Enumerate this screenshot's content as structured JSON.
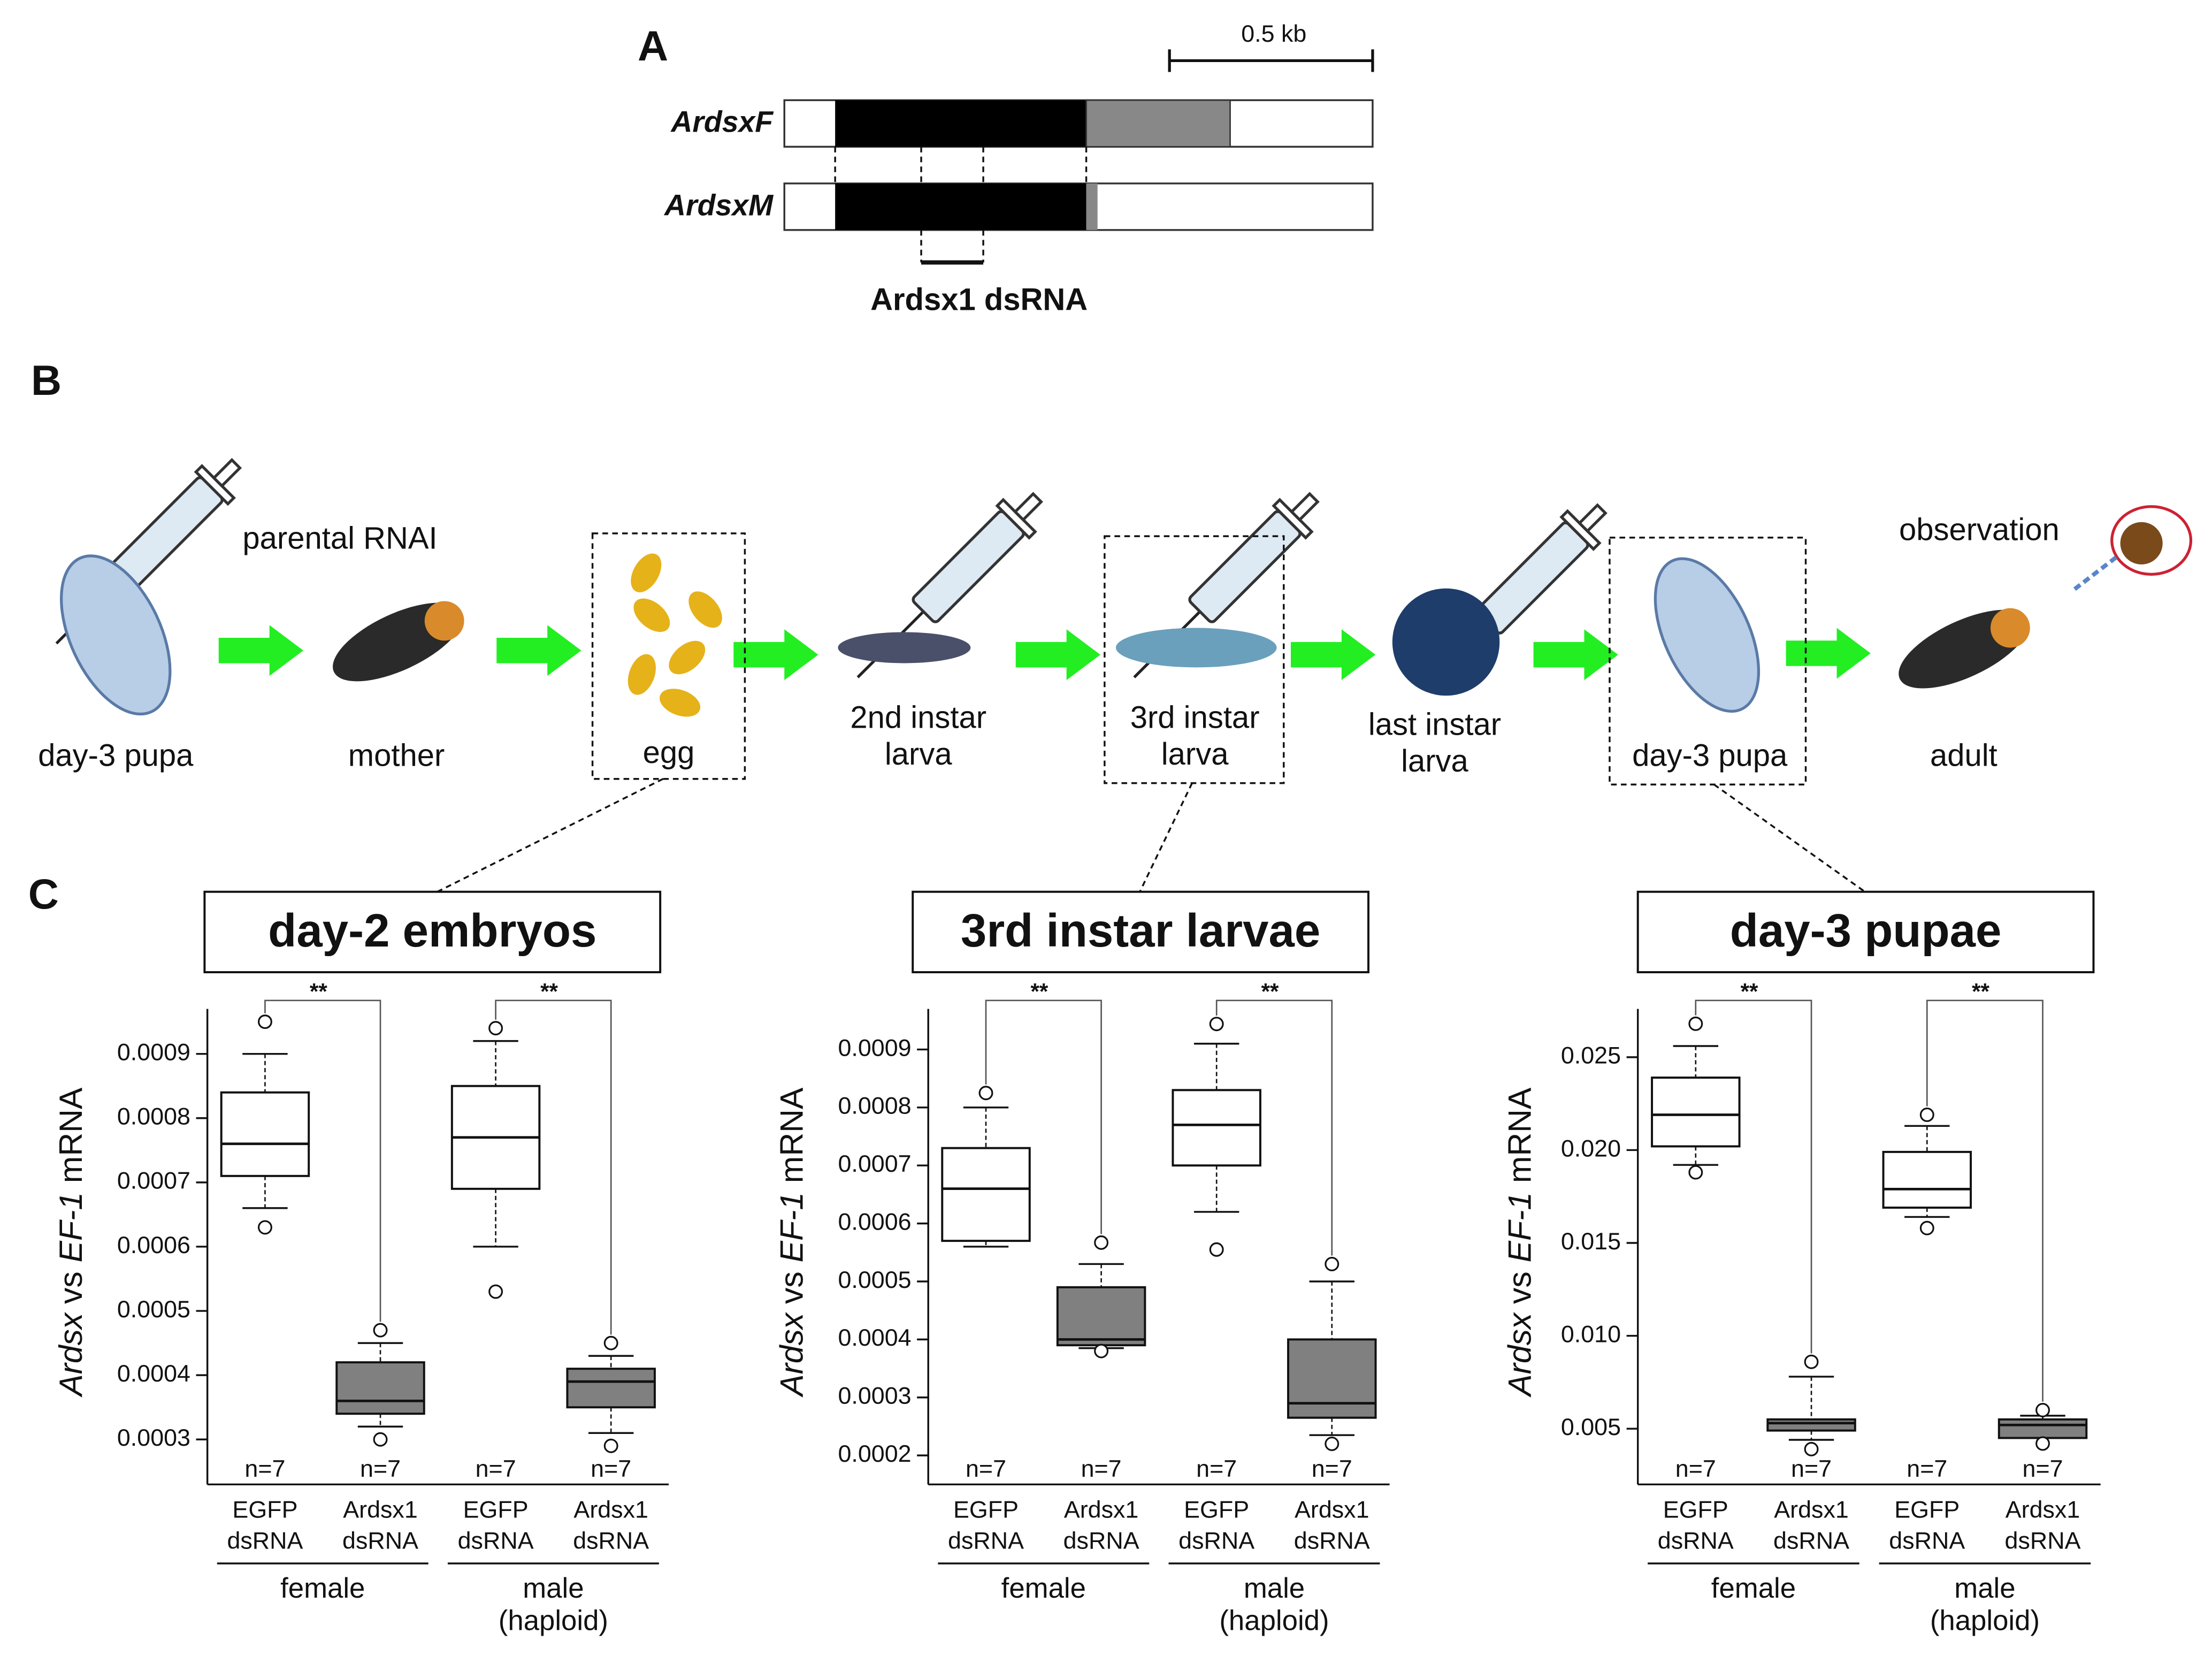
{
  "panel_a": {
    "label": "A",
    "scale": "0.5 kb",
    "transcripts": [
      "ArdsxF",
      "ArdsxM"
    ],
    "dsrna": "Ardsx1 dsRNA"
  },
  "panel_b": {
    "label": "B",
    "injection": "parental RNAI",
    "observation": "observation",
    "stages": [
      [
        "day-3 pupa"
      ],
      [
        "mother"
      ],
      [
        "egg"
      ],
      [
        "2nd instar",
        "larva"
      ],
      [
        "3rd instar",
        "larva"
      ],
      [
        "last instar",
        "larva"
      ],
      [
        "day-3 pupa"
      ],
      [
        "adult"
      ]
    ]
  },
  "panel_c": {
    "label": "C"
  },
  "chart_data": [
    {
      "type": "box",
      "title": "day-2 embryos",
      "ylabel": [
        "Ardsx",
        " vs ",
        "EF-1",
        " mRNA"
      ],
      "ylim": [
        0.00023,
        0.00097
      ],
      "yticks": [
        0.0003,
        0.0004,
        0.0005,
        0.0006,
        0.0007,
        0.0008,
        0.0009
      ],
      "categories": [
        [
          "EGFP",
          "dsRNA"
        ],
        [
          "Ardsx1",
          "dsRNA"
        ],
        [
          "EGFP",
          "dsRNA"
        ],
        [
          "Ardsx1",
          "dsRNA"
        ]
      ],
      "groups": [
        [
          "female"
        ],
        [
          "male",
          "(haploid)"
        ]
      ],
      "n_labels": [
        "n=7",
        "n=7",
        "n=7",
        "n=7"
      ],
      "annotations": [
        "**",
        "**"
      ],
      "colors": [
        "#ffffff",
        "#808080",
        "#ffffff",
        "#808080"
      ],
      "boxes": [
        {
          "low": 0.00066,
          "q1": 0.00071,
          "median": 0.00076,
          "q3": 0.00084,
          "high": 0.0009,
          "outliers": [
            0.00095,
            0.00063
          ]
        },
        {
          "low": 0.00032,
          "q1": 0.00034,
          "median": 0.00036,
          "q3": 0.00042,
          "high": 0.00045,
          "outliers": [
            0.00047,
            0.0003
          ]
        },
        {
          "low": 0.0006,
          "q1": 0.00069,
          "median": 0.00077,
          "q3": 0.00085,
          "high": 0.00092,
          "outliers": [
            0.00094,
            0.00053
          ]
        },
        {
          "low": 0.00031,
          "q1": 0.00035,
          "median": 0.00039,
          "q3": 0.00041,
          "high": 0.00043,
          "outliers": [
            0.00045,
            0.00029
          ]
        }
      ]
    },
    {
      "type": "box",
      "title": "3rd instar larvae",
      "ylabel": [
        "Ardsx",
        " vs ",
        "EF-1",
        " mRNA"
      ],
      "ylim": [
        0.00015,
        0.00097
      ],
      "yticks": [
        0.0002,
        0.0003,
        0.0004,
        0.0005,
        0.0006,
        0.0007,
        0.0008,
        0.0009
      ],
      "categories": [
        [
          "EGFP",
          "dsRNA"
        ],
        [
          "Ardsx1",
          "dsRNA"
        ],
        [
          "EGFP",
          "dsRNA"
        ],
        [
          "Ardsx1",
          "dsRNA"
        ]
      ],
      "groups": [
        [
          "female"
        ],
        [
          "male",
          "(haploid)"
        ]
      ],
      "n_labels": [
        "n=7",
        "n=7",
        "n=7",
        "n=7"
      ],
      "annotations": [
        "**",
        "**"
      ],
      "colors": [
        "#ffffff",
        "#808080",
        "#ffffff",
        "#808080"
      ],
      "boxes": [
        {
          "low": 0.00056,
          "q1": 0.00057,
          "median": 0.00066,
          "q3": 0.00073,
          "high": 0.0008,
          "outliers": [
            0.000825
          ]
        },
        {
          "low": 0.000385,
          "q1": 0.00039,
          "median": 0.0004,
          "q3": 0.00049,
          "high": 0.00053,
          "outliers": [
            0.000567,
            0.00038
          ]
        },
        {
          "low": 0.00062,
          "q1": 0.0007,
          "median": 0.00077,
          "q3": 0.00083,
          "high": 0.00091,
          "outliers": [
            0.000944,
            0.000555
          ]
        },
        {
          "low": 0.000235,
          "q1": 0.000265,
          "median": 0.00029,
          "q3": 0.0004,
          "high": 0.0005,
          "outliers": [
            0.00053,
            0.00022
          ]
        }
      ]
    },
    {
      "type": "box",
      "title": "day-3 pupae",
      "ylabel": [
        "Ardsx",
        " vs ",
        "EF-1",
        " mRNA"
      ],
      "ylim": [
        0.002,
        0.0276
      ],
      "yticks": [
        0.005,
        {
          "value": 0.01,
          "label": "0.010"
        },
        0.015,
        {
          "value": 0.02,
          "label": "0.020"
        },
        0.025
      ],
      "categories": [
        [
          "EGFP",
          "dsRNA"
        ],
        [
          "Ardsx1",
          "dsRNA"
        ],
        [
          "EGFP",
          "dsRNA"
        ],
        [
          "Ardsx1",
          "dsRNA"
        ]
      ],
      "groups": [
        [
          "female"
        ],
        [
          "male",
          "(haploid)"
        ]
      ],
      "n_labels": [
        "n=7",
        "n=7",
        "n=7",
        "n=7"
      ],
      "annotations": [
        "**",
        "**"
      ],
      "colors": [
        "#ffffff",
        "#808080",
        "#ffffff",
        "#808080"
      ],
      "boxes": [
        {
          "low": 0.0192,
          "q1": 0.0202,
          "median": 0.0219,
          "q3": 0.0239,
          "high": 0.0256,
          "outliers": [
            0.0268,
            0.0188
          ]
        },
        {
          "low": 0.0044,
          "q1": 0.0049,
          "median": 0.0053,
          "q3": 0.0055,
          "high": 0.0078,
          "outliers": [
            0.0086,
            0.0039
          ]
        },
        {
          "low": 0.0164,
          "q1": 0.0169,
          "median": 0.0179,
          "q3": 0.0199,
          "high": 0.0213,
          "outliers": [
            0.0219,
            0.0158
          ]
        },
        {
          "low": 0.0045,
          "q1": 0.0045,
          "median": 0.0052,
          "q3": 0.0055,
          "high": 0.0057,
          "outliers": [
            0.006,
            0.0042
          ]
        }
      ]
    }
  ]
}
